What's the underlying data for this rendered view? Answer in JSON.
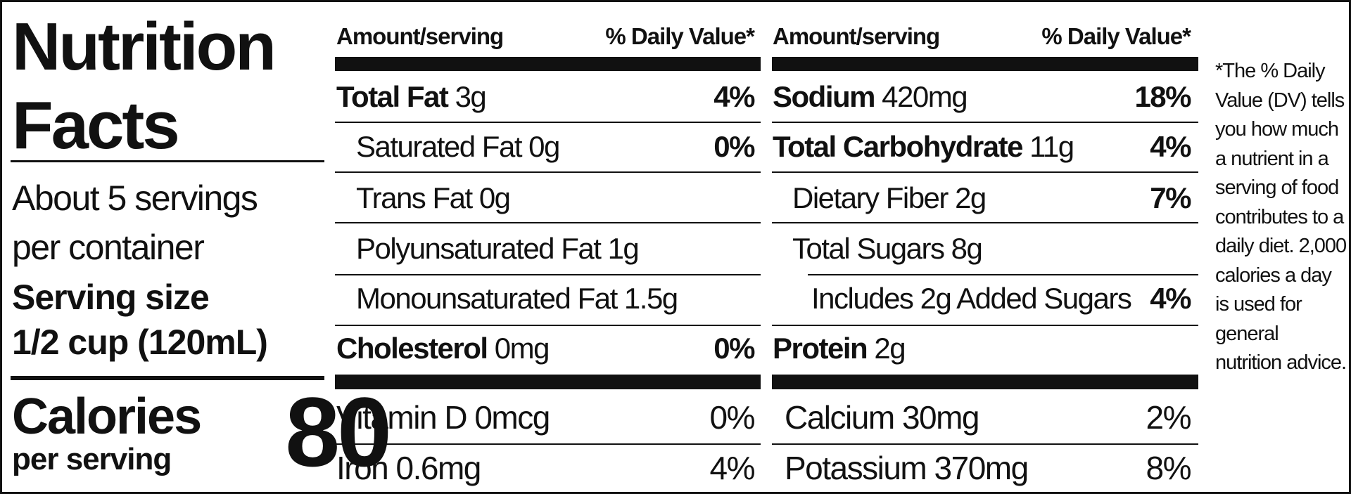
{
  "title": "Nutrition Facts",
  "servings": "About 5 servings per container",
  "serving_size": {
    "label": "Serving size",
    "value": "1/2 cup (120mL)"
  },
  "calories": {
    "label": "Calories",
    "sublabel": "per serving",
    "value": 80
  },
  "columns": [
    {
      "header": {
        "amount": "Amount/serving",
        "daily_value": "% Daily Value*"
      },
      "rows": [
        {
          "name": "Total Fat",
          "amount": "3g",
          "daily_value": "4%"
        },
        {
          "name": "Saturated Fat",
          "amount": "0g",
          "daily_value": "0%"
        },
        {
          "name": "Trans Fat",
          "amount": "0g"
        },
        {
          "name": "Polyunsaturated Fat",
          "amount": "1g"
        },
        {
          "name": "Monounsaturated Fat",
          "amount": "1.5g"
        },
        {
          "name": "Cholesterol",
          "amount": "0mg",
          "daily_value": "0%"
        }
      ]
    },
    {
      "header": {
        "amount": "Amount/serving",
        "daily_value": "% Daily Value*"
      },
      "rows": [
        {
          "name": "Sodium",
          "amount": "420mg",
          "daily_value": "18%"
        },
        {
          "name": "Total Carbohydrate",
          "amount": "11g",
          "daily_value": "4%"
        },
        {
          "name": "Dietary Fiber",
          "amount": "2g",
          "daily_value": "7%"
        },
        {
          "name": "Total Sugars",
          "amount": "8g"
        },
        {
          "name": "Includes 2g Added Sugars",
          "daily_value": "4%"
        },
        {
          "name": "Protein",
          "amount": "2g"
        }
      ]
    }
  ],
  "vitamins": [
    {
      "name": "Vitamin D",
      "amount": "0mcg",
      "daily_value": "0%"
    },
    {
      "name": "Calcium",
      "amount": "30mg",
      "daily_value": "2%"
    },
    {
      "name": "Iron",
      "amount": "0.6mg",
      "daily_value": "4%"
    },
    {
      "name": "Potassium",
      "amount": "370mg",
      "daily_value": "8%"
    }
  ],
  "footnote": "*The % Daily Value (DV) tells you how much a nutrient in a serving of food contributes to a daily diet. 2,000 calories a day is used for general nutrition advice."
}
